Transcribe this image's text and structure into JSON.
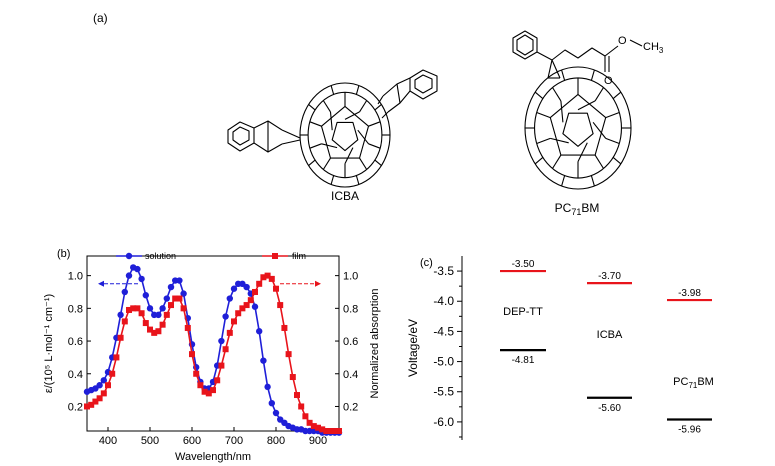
{
  "panels": {
    "a": {
      "label": "(a)",
      "molecules": [
        "ICBA",
        "PC71BM"
      ],
      "pc71bm_prefix": "PC",
      "pc71bm_sub": "71",
      "pc71bm_suffix": "BM",
      "methyl_o": "O",
      "methyl_ch3": "CH",
      "methyl_sub": "3",
      "carbonyl_o": "O"
    },
    "b": {
      "label": "(b)"
    },
    "c": {
      "label": "(c)"
    }
  },
  "chart_data": [
    {
      "panel": "b",
      "type": "line",
      "xlabel": "Wavelength/nm",
      "ylabel_left": "ε/(10⁵ L·mol⁻¹ cm⁻¹)",
      "ylabel_right": "Normalized absorption",
      "xlim": [
        350,
        950
      ],
      "ylim_left": [
        0.05,
        1.12
      ],
      "ylim_right": [
        0.05,
        1.12
      ],
      "xticks": [
        400,
        500,
        600,
        700,
        800,
        900
      ],
      "yticks_left": [
        0.2,
        0.4,
        0.6,
        0.8,
        1.0
      ],
      "yticks_right": [
        0.2,
        0.4,
        0.6,
        0.8,
        1.0
      ],
      "legend": [
        "solution",
        "film"
      ],
      "colors": {
        "solution": "#1f1fd8",
        "film": "#e8141b"
      },
      "series": [
        {
          "name": "solution",
          "color": "#1f1fd8",
          "marker": "circle",
          "axis": "left",
          "x": [
            350,
            360,
            370,
            380,
            390,
            400,
            410,
            420,
            430,
            440,
            450,
            460,
            470,
            480,
            490,
            500,
            510,
            520,
            530,
            540,
            550,
            560,
            570,
            580,
            590,
            600,
            610,
            620,
            630,
            640,
            650,
            660,
            670,
            680,
            690,
            700,
            710,
            720,
            730,
            740,
            750,
            760,
            770,
            780,
            790,
            800,
            810,
            820,
            830,
            840,
            850,
            860,
            870,
            880,
            890,
            900,
            910,
            920,
            930,
            940,
            950
          ],
          "y": [
            0.29,
            0.3,
            0.31,
            0.33,
            0.36,
            0.41,
            0.5,
            0.62,
            0.76,
            0.9,
            1.0,
            1.05,
            1.04,
            0.98,
            0.88,
            0.8,
            0.76,
            0.76,
            0.8,
            0.86,
            0.93,
            0.97,
            0.97,
            0.89,
            0.74,
            0.58,
            0.44,
            0.35,
            0.31,
            0.31,
            0.35,
            0.45,
            0.6,
            0.75,
            0.86,
            0.92,
            0.95,
            0.95,
            0.93,
            0.89,
            0.81,
            0.66,
            0.48,
            0.32,
            0.22,
            0.16,
            0.12,
            0.1,
            0.08,
            0.07,
            0.06,
            0.06,
            0.05,
            0.05,
            0.05,
            0.05,
            0.04,
            0.04,
            0.04,
            0.04,
            0.04
          ]
        },
        {
          "name": "film",
          "color": "#e8141b",
          "marker": "square",
          "axis": "right",
          "x": [
            350,
            360,
            370,
            380,
            390,
            400,
            410,
            420,
            430,
            440,
            450,
            460,
            470,
            480,
            490,
            500,
            510,
            520,
            530,
            540,
            550,
            560,
            570,
            580,
            590,
            600,
            610,
            620,
            630,
            640,
            650,
            660,
            670,
            680,
            690,
            700,
            710,
            720,
            730,
            740,
            750,
            760,
            770,
            780,
            790,
            800,
            810,
            820,
            830,
            840,
            850,
            860,
            870,
            880,
            890,
            900,
            910,
            920,
            930,
            940,
            950
          ],
          "y": [
            0.2,
            0.21,
            0.23,
            0.25,
            0.28,
            0.33,
            0.4,
            0.5,
            0.62,
            0.72,
            0.79,
            0.8,
            0.8,
            0.77,
            0.71,
            0.67,
            0.65,
            0.66,
            0.7,
            0.76,
            0.82,
            0.86,
            0.86,
            0.8,
            0.68,
            0.52,
            0.4,
            0.33,
            0.29,
            0.28,
            0.3,
            0.36,
            0.45,
            0.55,
            0.65,
            0.72,
            0.77,
            0.8,
            0.82,
            0.85,
            0.9,
            0.95,
            0.99,
            1.0,
            0.98,
            0.92,
            0.82,
            0.68,
            0.52,
            0.38,
            0.27,
            0.2,
            0.14,
            0.1,
            0.08,
            0.07,
            0.06,
            0.05,
            0.05,
            0.05,
            0.05
          ]
        }
      ]
    },
    {
      "panel": "c",
      "type": "energy-level",
      "ylabel": "Voltage/eV",
      "ylim": [
        -6.3,
        -3.25
      ],
      "yticks": [
        -3.5,
        -4.0,
        -4.5,
        -5.0,
        -5.5,
        -6.0
      ],
      "ytick_labels": [
        "-3.5",
        "-4.0",
        "-4.5",
        "-5.0",
        "-5.5",
        "-6.0"
      ],
      "materials": [
        {
          "name": "DEP-TT",
          "name_prefix": "DEP-TT",
          "name_sub": "",
          "name_suffix": "",
          "lumo": -3.5,
          "homo": -4.81,
          "lumo_label": "-3.50",
          "homo_label": "-4.81"
        },
        {
          "name": "ICBA",
          "name_prefix": "ICBA",
          "name_sub": "",
          "name_suffix": "",
          "lumo": -3.7,
          "homo": -5.6,
          "lumo_label": "-3.70",
          "homo_label": "-5.60"
        },
        {
          "name": "PC71BM",
          "name_prefix": "PC",
          "name_sub": "71",
          "name_suffix": "BM",
          "lumo": -3.98,
          "homo": -5.96,
          "lumo_label": "-3.98",
          "homo_label": "-5.96"
        }
      ],
      "colors": {
        "lumo": "#e8141b",
        "homo": "#000000"
      }
    }
  ]
}
